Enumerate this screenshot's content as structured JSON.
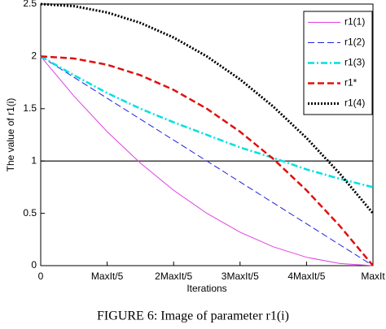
{
  "chart_data": {
    "type": "line",
    "xlabel": "Iterations",
    "ylabel": "The value of r1(i)",
    "caption": "FIGURE 6: Image of parameter r1(i)",
    "x": [
      0,
      0.1,
      0.2,
      0.3,
      0.4,
      0.5,
      0.6,
      0.7,
      0.8,
      0.9,
      1
    ],
    "series": [
      {
        "name": "r1(1)",
        "color": "#e040e0",
        "line_style": "solid",
        "width": 1,
        "values": [
          2,
          1.62,
          1.28,
          0.98,
          0.72,
          0.5,
          0.32,
          0.18,
          0.08,
          0.02,
          0
        ]
      },
      {
        "name": "r1(2)",
        "color": "#2020e0",
        "line_style": "dashed",
        "width": 1,
        "values": [
          2,
          1.8,
          1.6,
          1.4,
          1.2,
          1,
          0.8,
          0.6,
          0.4,
          0.2,
          0
        ]
      },
      {
        "name": "r1(3)",
        "color": "#00e0e0",
        "line_style": "dashdot",
        "width": 2.5,
        "values": [
          2,
          1.82,
          1.65,
          1.5,
          1.37,
          1.25,
          1.13,
          1.03,
          0.92,
          0.83,
          0.75
        ]
      },
      {
        "name": "r1*",
        "color": "#e01010",
        "line_style": "dashed",
        "width": 2.5,
        "values": [
          2,
          1.98,
          1.92,
          1.82,
          1.68,
          1.5,
          1.28,
          1.02,
          0.72,
          0.38,
          0
        ]
      },
      {
        "name": "r1(4)",
        "color": "#000000",
        "line_style": "dotted",
        "width": 3,
        "values": [
          2.5,
          2.48,
          2.42,
          2.32,
          2.18,
          2,
          1.78,
          1.52,
          1.22,
          0.88,
          0.5
        ]
      }
    ],
    "hline": 1,
    "xlim": [
      0,
      1
    ],
    "xticks": [
      0,
      {
        "value": 0.2,
        "label": "MaxIt/5"
      },
      {
        "value": 0.4,
        "label": "2MaxIt/5"
      },
      {
        "value": 0.6,
        "label": "3MaxIt/5"
      },
      {
        "value": 0.8,
        "label": "4MaxIt/5"
      },
      {
        "value": 1,
        "label": "MaxIt"
      }
    ],
    "ylim": [
      0,
      2.5
    ],
    "yticks": [
      0,
      0.5,
      1,
      1.5,
      2,
      2.5
    ],
    "legend": "top-right"
  }
}
